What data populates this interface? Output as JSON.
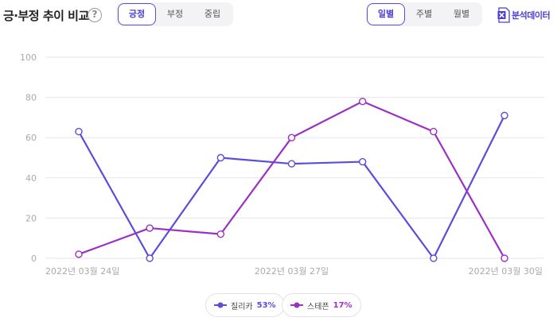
{
  "header": {
    "title": "긍·부정 추이 비교",
    "help_icon": "?",
    "sentiment_tabs": [
      {
        "label": "긍정",
        "active": true
      },
      {
        "label": "부정",
        "active": false
      },
      {
        "label": "중립",
        "active": false
      }
    ],
    "period_tabs": [
      {
        "label": "일별",
        "active": true
      },
      {
        "label": "주별",
        "active": false
      },
      {
        "label": "월별",
        "active": false
      }
    ],
    "export_label": "분석데이터",
    "export_icon": "excel-icon"
  },
  "colors": {
    "accent": "#4a3fd1",
    "series_1": "#5b4ddb",
    "series_2": "#9c2fc4"
  },
  "legend": [
    {
      "name": "질리카",
      "percent": "53%"
    },
    {
      "name": "스테픈",
      "percent": "17%"
    }
  ],
  "chart_data": {
    "type": "line",
    "title": "",
    "xlabel": "",
    "ylabel": "",
    "ylim": [
      0,
      100
    ],
    "yticks": [
      0,
      20,
      40,
      60,
      80,
      100
    ],
    "x": [
      "2022-03-24",
      "2022-03-25",
      "2022-03-26",
      "2022-03-27",
      "2022-03-28",
      "2022-03-29",
      "2022-03-30"
    ],
    "x_tick_labels": [
      {
        "index": 0,
        "label": "2022년 03월 24일"
      },
      {
        "index": 3,
        "label": "2022년 03월 27일"
      },
      {
        "index": 6,
        "label": "2022년 03월 30일"
      }
    ],
    "grid": true,
    "legend_position": "bottom-center",
    "series": [
      {
        "name": "질리카",
        "values": [
          63,
          0,
          50,
          47,
          48,
          0,
          71
        ]
      },
      {
        "name": "스테픈",
        "values": [
          2,
          15,
          12,
          60,
          78,
          63,
          0
        ]
      }
    ]
  }
}
